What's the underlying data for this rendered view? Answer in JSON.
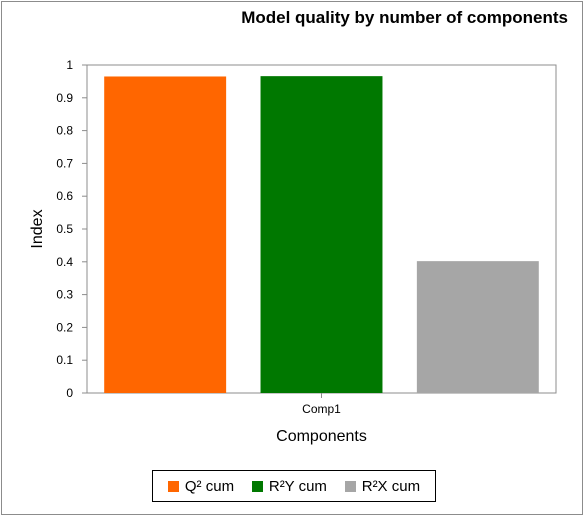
{
  "chart_data": {
    "type": "bar",
    "title": "Model quality by number of components",
    "xlabel": "Components",
    "ylabel": "Index",
    "categories": [
      "Comp1"
    ],
    "ylim": [
      0,
      1
    ],
    "yticks": [
      "0",
      "0.1",
      "0.2",
      "0.3",
      "0.4",
      "0.5",
      "0.6",
      "0.7",
      "0.8",
      "0.9",
      "1"
    ],
    "series": [
      {
        "name": "Q² cum",
        "values": [
          0.965
        ],
        "color": "#ff6600"
      },
      {
        "name": "R²Y cum",
        "values": [
          0.966
        ],
        "color": "#007800"
      },
      {
        "name": "R²X cum",
        "values": [
          0.402
        ],
        "color": "#a6a6a6"
      }
    ],
    "grid": false,
    "legend_position": "bottom"
  }
}
